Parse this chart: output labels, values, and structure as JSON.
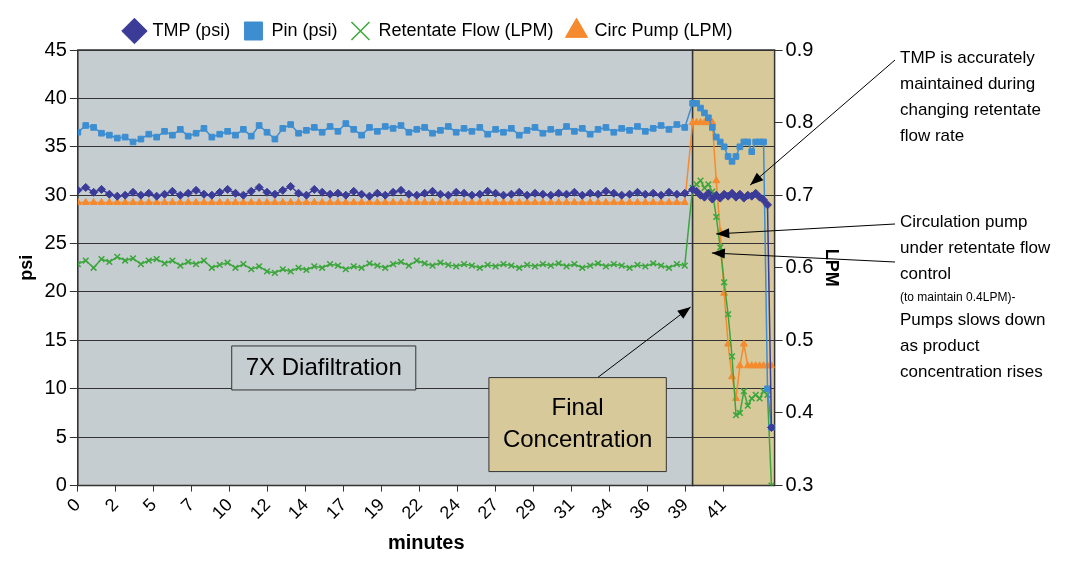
{
  "chart_data": {
    "type": "line",
    "xlabel": "minutes",
    "ylabel": "psi",
    "y2label": "LPM",
    "x": [
      0,
      0.5,
      1,
      1.5,
      2,
      2.5,
      3,
      3.5,
      4,
      4.5,
      5,
      5.5,
      6,
      6.5,
      7,
      7.5,
      8,
      8.5,
      9,
      9.5,
      10,
      10.5,
      11,
      11.5,
      12,
      12.5,
      13,
      13.5,
      14,
      14.5,
      15,
      15.5,
      16,
      16.5,
      17,
      17.5,
      18,
      18.5,
      19,
      19.5,
      20,
      20.5,
      21,
      21.5,
      22,
      22.5,
      23,
      23.5,
      24,
      24.5,
      25,
      25.5,
      26,
      26.5,
      27,
      27.5,
      28,
      28.5,
      29,
      29.5,
      30,
      30.5,
      31,
      31.5,
      32,
      32.5,
      33,
      33.5,
      34,
      34.5,
      35,
      35.5,
      36,
      36.5,
      37,
      37.5,
      38,
      38.5,
      39,
      39.25,
      39.5,
      39.75,
      40,
      40.25,
      40.5,
      40.75,
      41,
      41.25,
      41.5,
      41.75,
      42,
      42.25,
      42.5,
      42.75,
      43,
      43.25,
      43.5,
      43.75,
      44
    ],
    "series": [
      {
        "name": "TMP (psi)",
        "color": "#3b3b98",
        "marker": "diamond",
        "values": [
          30.5,
          30.8,
          30.3,
          30.6,
          30.1,
          29.9,
          30.0,
          30.3,
          30.0,
          30.2,
          29.9,
          30.1,
          30.4,
          30.0,
          30.2,
          30.5,
          30.1,
          30.0,
          30.3,
          30.6,
          30.2,
          30.0,
          30.4,
          30.8,
          30.3,
          30.1,
          30.5,
          30.9,
          30.2,
          30.0,
          30.6,
          30.3,
          30.1,
          30.2,
          30.0,
          30.4,
          30.1,
          29.9,
          30.2,
          30.0,
          30.3,
          30.5,
          30.1,
          30.0,
          30.2,
          30.4,
          30.1,
          30.0,
          30.3,
          30.2,
          30.0,
          30.1,
          30.4,
          30.2,
          30.0,
          30.1,
          30.3,
          30.0,
          30.2,
          30.1,
          30.0,
          30.2,
          30.1,
          30.3,
          30.0,
          30.2,
          30.1,
          30.4,
          30.2,
          30.0,
          30.1,
          30.3,
          30.1,
          30.2,
          30.0,
          30.3,
          30.1,
          30.2,
          30.6,
          30.4,
          30.0,
          29.8,
          30.2,
          29.6,
          30.0,
          29.7,
          30.1,
          29.9,
          30.2,
          29.8,
          30.1,
          29.7,
          30.0,
          29.9,
          30.2,
          29.8,
          29.5,
          29.0,
          6
        ]
      },
      {
        "name": "Pin (psi)",
        "color": "#3d8ed1",
        "marker": "square",
        "values": [
          36.5,
          37.2,
          37.0,
          36.4,
          36.2,
          35.9,
          36.0,
          35.5,
          35.8,
          36.3,
          36.0,
          36.6,
          36.2,
          36.8,
          36.1,
          36.4,
          36.9,
          36.0,
          36.3,
          36.6,
          36.2,
          36.8,
          36.1,
          37.2,
          36.5,
          35.8,
          36.9,
          37.3,
          36.4,
          36.7,
          37.0,
          36.5,
          37.1,
          36.6,
          37.4,
          36.8,
          36.2,
          37.0,
          36.6,
          37.1,
          36.9,
          37.2,
          36.5,
          36.8,
          37.0,
          36.4,
          36.7,
          37.1,
          36.5,
          36.9,
          36.6,
          37.0,
          36.3,
          36.8,
          36.5,
          36.9,
          36.2,
          36.7,
          37.0,
          36.4,
          36.8,
          36.5,
          37.1,
          36.6,
          36.9,
          36.3,
          36.8,
          37.0,
          36.5,
          36.9,
          36.7,
          37.1,
          36.6,
          36.9,
          37.2,
          36.8,
          37.3,
          37.0,
          39.5,
          39.5,
          39.0,
          38.5,
          38.0,
          37.0,
          36.0,
          35.5,
          35.0,
          34.0,
          33.5,
          34.0,
          35.0,
          35.5,
          35.5,
          34.5,
          35.5,
          35.5,
          35.5,
          10,
          6
        ]
      },
      {
        "name": "Retentate Flow (LPM)",
        "color": "#3ca63c",
        "marker": "cross",
        "axis": "y2",
        "values": [
          0.605,
          0.61,
          0.6,
          0.612,
          0.608,
          0.615,
          0.61,
          0.613,
          0.605,
          0.61,
          0.612,
          0.606,
          0.61,
          0.603,
          0.608,
          0.605,
          0.61,
          0.6,
          0.604,
          0.607,
          0.6,
          0.605,
          0.598,
          0.602,
          0.595,
          0.593,
          0.598,
          0.595,
          0.6,
          0.597,
          0.602,
          0.6,
          0.605,
          0.603,
          0.598,
          0.602,
          0.6,
          0.606,
          0.603,
          0.6,
          0.605,
          0.608,
          0.603,
          0.61,
          0.606,
          0.603,
          0.607,
          0.604,
          0.602,
          0.605,
          0.603,
          0.6,
          0.604,
          0.602,
          0.605,
          0.603,
          0.6,
          0.604,
          0.602,
          0.605,
          0.603,
          0.606,
          0.602,
          0.605,
          0.6,
          0.603,
          0.606,
          0.602,
          0.605,
          0.603,
          0.6,
          0.604,
          0.602,
          0.606,
          0.603,
          0.6,
          0.605,
          0.603,
          0.71,
          0.715,
          0.72,
          0.71,
          0.715,
          0.705,
          0.67,
          0.628,
          0.58,
          0.536,
          0.478,
          0.397,
          0.4,
          0.43,
          0.41,
          0.42,
          0.425,
          0.42,
          0.43,
          0.425,
          0.3
        ]
      },
      {
        "name": "Circ Pump (LPM)",
        "color": "#f58a2e",
        "marker": "triangle",
        "axis": "y2",
        "values": [
          0.69,
          0.69,
          0.69,
          0.69,
          0.69,
          0.69,
          0.69,
          0.69,
          0.69,
          0.69,
          0.69,
          0.69,
          0.69,
          0.69,
          0.69,
          0.69,
          0.69,
          0.69,
          0.69,
          0.69,
          0.69,
          0.69,
          0.69,
          0.69,
          0.69,
          0.69,
          0.69,
          0.69,
          0.69,
          0.69,
          0.69,
          0.69,
          0.69,
          0.69,
          0.69,
          0.69,
          0.69,
          0.69,
          0.69,
          0.69,
          0.69,
          0.69,
          0.69,
          0.69,
          0.69,
          0.69,
          0.69,
          0.69,
          0.69,
          0.69,
          0.69,
          0.69,
          0.69,
          0.69,
          0.69,
          0.69,
          0.69,
          0.69,
          0.69,
          0.69,
          0.69,
          0.69,
          0.69,
          0.69,
          0.69,
          0.69,
          0.69,
          0.69,
          0.69,
          0.69,
          0.69,
          0.69,
          0.69,
          0.69,
          0.69,
          0.69,
          0.69,
          0.69,
          0.8,
          0.8,
          0.8,
          0.8,
          0.8,
          0.8,
          0.72,
          0.65,
          0.565,
          0.495,
          0.45,
          0.42,
          0.465,
          0.495,
          0.465,
          0.465,
          0.465,
          0.465,
          0.465,
          0.465,
          0.465
        ]
      }
    ],
    "xlim": [
      0,
      44.2
    ],
    "xticks": [
      0,
      {
        "value": 2.41,
        "label": "2"
      },
      {
        "value": 4.82,
        "label": "5"
      },
      {
        "value": 7.23,
        "label": "7"
      },
      {
        "value": 9.64,
        "label": "10"
      },
      {
        "value": 12.05,
        "label": "12"
      },
      {
        "value": 14.46,
        "label": "14"
      },
      {
        "value": 16.87,
        "label": "17"
      },
      {
        "value": 19.28,
        "label": "19"
      },
      {
        "value": 21.69,
        "label": "22"
      },
      {
        "value": 24.1,
        "label": "24"
      },
      {
        "value": 26.51,
        "label": "27"
      },
      {
        "value": 28.92,
        "label": "29"
      },
      {
        "value": 31.33,
        "label": "31"
      },
      {
        "value": 33.74,
        "label": "34"
      },
      {
        "value": 36.15,
        "label": "36"
      },
      {
        "value": 38.56,
        "label": "39"
      },
      {
        "value": 40.97,
        "label": "41"
      }
    ],
    "ylim": [
      0,
      45
    ],
    "yticks": [
      0,
      5,
      10,
      15,
      20,
      25,
      30,
      35,
      40,
      45
    ],
    "y2lim": [
      0.3,
      0.9
    ],
    "y2ticks": [
      0.3,
      0.4,
      0.5,
      0.6,
      0.7,
      0.8,
      0.9
    ],
    "bands": [
      {
        "axis": "x",
        "from": 0,
        "to": 39,
        "label": "7X Diafiltration",
        "color": "#c6cdd0"
      },
      {
        "axis": "x",
        "from": 39,
        "to": 44.2,
        "label": "Final Concentration",
        "color": "#d7c99a"
      }
    ],
    "annotations": [
      "TMP is accurately maintained during changing retentate flow rate",
      {
        "text": "Circulation pump under retentate flow control",
        "x": 40.5,
        "y": 26
      },
      "(to maintain 0.4LPM)-",
      "Pumps slows down as product concentration rises"
    ],
    "grid": "y",
    "legend": "top",
    "line_style": "solid"
  }
}
